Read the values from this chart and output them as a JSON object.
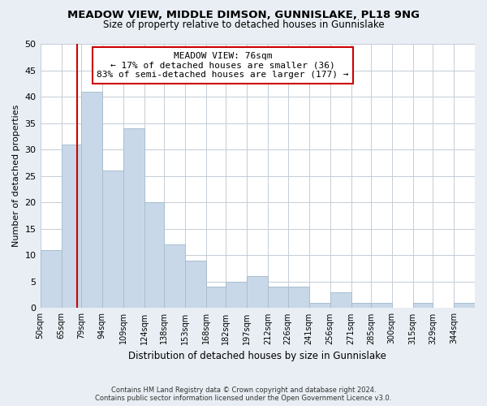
{
  "title": "MEADOW VIEW, MIDDLE DIMSON, GUNNISLAKE, PL18 9NG",
  "subtitle": "Size of property relative to detached houses in Gunnislake",
  "xlabel": "Distribution of detached houses by size in Gunnislake",
  "ylabel": "Number of detached properties",
  "footnote1": "Contains HM Land Registry data © Crown copyright and database right 2024.",
  "footnote2": "Contains public sector information licensed under the Open Government Licence v3.0.",
  "bar_labels": [
    "50sqm",
    "65sqm",
    "79sqm",
    "94sqm",
    "109sqm",
    "124sqm",
    "138sqm",
    "153sqm",
    "168sqm",
    "182sqm",
    "197sqm",
    "212sqm",
    "226sqm",
    "241sqm",
    "256sqm",
    "271sqm",
    "285sqm",
    "300sqm",
    "315sqm",
    "329sqm",
    "344sqm"
  ],
  "bar_values": [
    11,
    31,
    41,
    26,
    34,
    20,
    12,
    9,
    4,
    5,
    6,
    4,
    4,
    1,
    3,
    1,
    1,
    0,
    1,
    0,
    1
  ],
  "bar_color": "#c8d8e8",
  "bar_edge_color": "#a8bece",
  "property_line_x": 76,
  "bin_edges": [
    50,
    65,
    79,
    94,
    109,
    124,
    138,
    153,
    168,
    182,
    197,
    212,
    226,
    241,
    256,
    271,
    285,
    300,
    315,
    329,
    344,
    359
  ],
  "annotation_title": "MEADOW VIEW: 76sqm",
  "annotation_line1": "← 17% of detached houses are smaller (36)",
  "annotation_line2": "83% of semi-detached houses are larger (177) →",
  "annotation_box_color": "#ffffff",
  "annotation_box_edge_color": "#cc0000",
  "property_line_color": "#cc0000",
  "ylim": [
    0,
    50
  ],
  "yticks": [
    0,
    5,
    10,
    15,
    20,
    25,
    30,
    35,
    40,
    45,
    50
  ],
  "background_color": "#e8eef4",
  "plot_background_color": "#ffffff",
  "grid_color": "#c4cdd6"
}
